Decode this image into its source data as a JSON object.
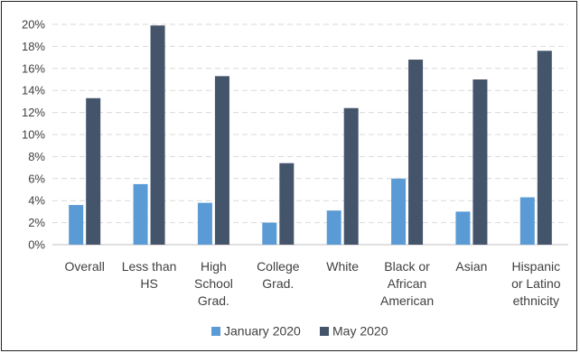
{
  "chart_data": {
    "type": "bar",
    "title": "",
    "xlabel": "",
    "ylabel": "",
    "categories": [
      [
        "Overall"
      ],
      [
        "Less than",
        "HS"
      ],
      [
        "High",
        "School",
        "Grad."
      ],
      [
        "College",
        "Grad."
      ],
      [
        "White"
      ],
      [
        "Black or",
        "African",
        "American"
      ],
      [
        "Asian"
      ],
      [
        "Hispanic",
        "or Latino",
        "ethnicity"
      ]
    ],
    "series": [
      {
        "name": "January 2020",
        "color": "#5b9bd5",
        "values": [
          3.6,
          5.5,
          3.8,
          2.0,
          3.1,
          6.0,
          3.0,
          4.3
        ]
      },
      {
        "name": "May 2020",
        "color": "#44546a",
        "values": [
          13.3,
          19.9,
          15.3,
          7.4,
          12.4,
          16.8,
          15.0,
          17.6
        ]
      }
    ],
    "ylim": [
      0,
      20
    ],
    "ytick_step": 2,
    "ytick_format": "percent",
    "grid": "horizontal-dashed",
    "legend_position": "bottom"
  }
}
